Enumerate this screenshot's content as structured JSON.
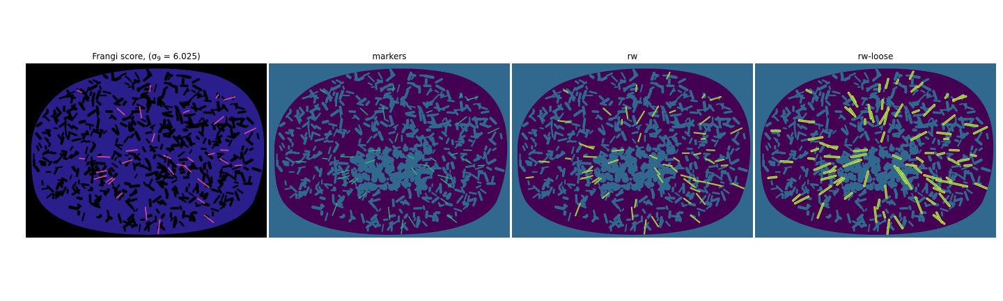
{
  "panels": [
    {
      "title_prefix": "Frangi score, (σ",
      "title_sub": "9",
      "title_suffix": " = 6.025)",
      "cmap": "magma"
    },
    {
      "title": "markers",
      "cmap": "markers"
    },
    {
      "title": "rw",
      "cmap": "rw"
    },
    {
      "title": "rw-loose",
      "cmap": "rwloose"
    }
  ],
  "colors": {
    "background_black": "#000000",
    "background_teal": "#31688e",
    "tissue_dark": "#440154",
    "tissue_blue": "#2a1d8c",
    "vessel_green": "#35b779",
    "vessel_yellow": "#fde725",
    "frangi_bright": "#e14aa8"
  }
}
